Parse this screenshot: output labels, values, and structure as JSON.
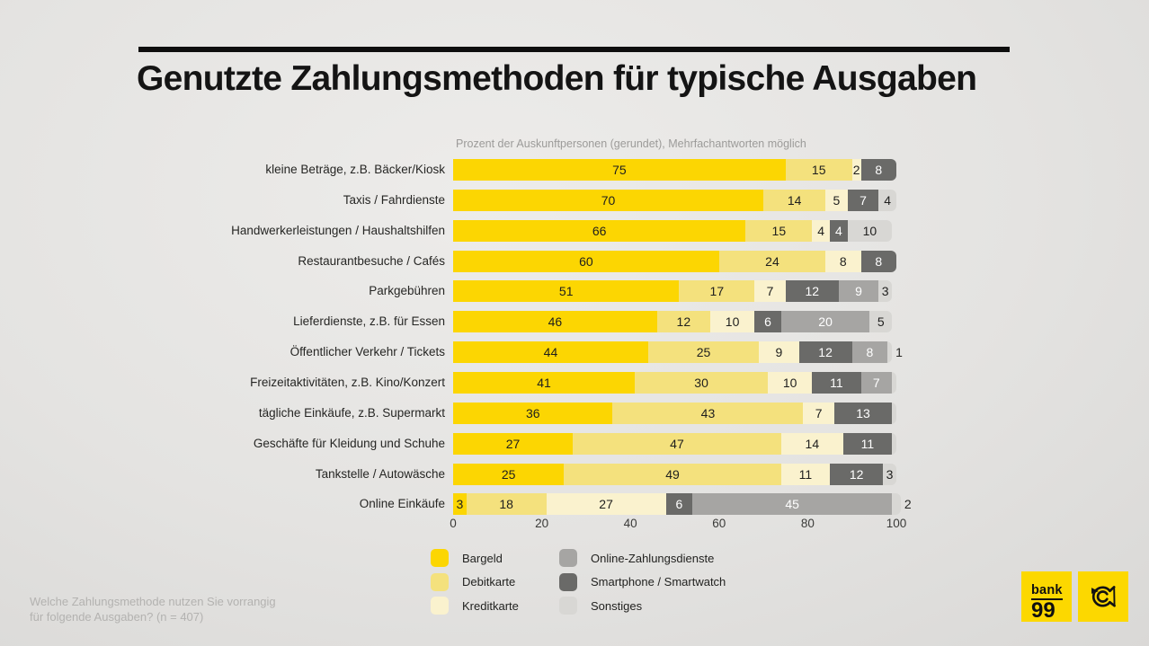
{
  "title": "Genutzte Zahlungsmethoden für typische Ausgaben",
  "subtitle": "Prozent der Auskunftpersonen (gerundet), Mehrfachantworten möglich",
  "footnote": {
    "line1": "Welche Zahlungsmethode nutzen Sie vorrangig",
    "line2": "für folgende Ausgaben? (n = 407)"
  },
  "colors": {
    "bargeld": "#FCD602",
    "debitkarte": "#F4E17D",
    "kreditkarte": "#FAF2CE",
    "online": "#A6A5A3",
    "smartphone": "#6A6A68",
    "sonstiges": "#D8D7D4",
    "rule_black": "#0E0E0E",
    "logo_yellow": "#FCD800",
    "segment_text_dark": "#1F1F1E",
    "segment_text_light": "#FFFFFF"
  },
  "legend": {
    "columns": [
      {
        "items": [
          {
            "key": "bargeld",
            "label": "Bargeld"
          },
          {
            "key": "debitkarte",
            "label": "Debitkarte"
          },
          {
            "key": "kreditkarte",
            "label": "Kreditkarte"
          }
        ]
      },
      {
        "items": [
          {
            "key": "online",
            "label": "Online-Zahlungsdienste"
          },
          {
            "key": "smartphone",
            "label": "Smartphone / Smartwatch"
          },
          {
            "key": "sonstiges",
            "label": "Sonstiges"
          }
        ]
      }
    ]
  },
  "logos": {
    "bank99": {
      "line1": "bank",
      "line2": "99"
    },
    "post": {
      "icon": "post-horn"
    }
  },
  "chart_data": {
    "type": "bar",
    "orientation": "horizontal",
    "stacked": true,
    "unit": "percent",
    "xlim": [
      0,
      100
    ],
    "axis_ticks": [
      0,
      20,
      40,
      60,
      80,
      100
    ],
    "grid": false,
    "legend_position": "bottom",
    "categories": [
      "kleine Beträge, z.B. Bäcker/Kiosk",
      "Taxis / Fahrdienste",
      "Handwerkerleistungen / Haushaltshilfen",
      "Restaurantbesuche / Cafés",
      "Parkgebühren",
      "Lieferdienste, z.B. für Essen",
      "Öffentlicher Verkehr / Tickets",
      "Freizeitaktivitäten, z.B. Kino/Konzert",
      "tägliche Einkäufe, z.B. Supermarkt",
      "Geschäfte für Kleidung und Schuhe",
      "Tankstelle / Autowäsche",
      "Online Einkäufe"
    ],
    "series": [
      {
        "key": "bargeld",
        "name": "Bargeld",
        "values": [
          75,
          70,
          66,
          60,
          51,
          46,
          44,
          41,
          36,
          27,
          25,
          3
        ]
      },
      {
        "key": "debitkarte",
        "name": "Debitkarte",
        "values": [
          15,
          14,
          15,
          24,
          17,
          12,
          25,
          30,
          43,
          47,
          49,
          18
        ]
      },
      {
        "key": "kreditkarte",
        "name": "Kreditkarte",
        "values": [
          2,
          5,
          4,
          8,
          7,
          10,
          9,
          10,
          7,
          14,
          11,
          27
        ]
      },
      {
        "key": "online",
        "name": "Online-Zahlungsdienste",
        "values": [
          0,
          0,
          0,
          0,
          9,
          20,
          8,
          7,
          0,
          0,
          0,
          45
        ]
      },
      {
        "key": "smartphone",
        "name": "Smartphone / Smartwatch",
        "values": [
          8,
          7,
          4,
          8,
          12,
          6,
          12,
          11,
          13,
          11,
          12,
          6
        ]
      },
      {
        "key": "sonstiges",
        "name": "Sonstiges",
        "values": [
          0,
          4,
          10,
          0,
          3,
          5,
          1,
          1,
          1,
          1,
          3,
          2
        ]
      }
    ],
    "rows": [
      {
        "label": "kleine Beträge, z.B. Bäcker/Kiosk",
        "segments": [
          {
            "key": "bargeld",
            "value": 75,
            "label": "in"
          },
          {
            "key": "debitkarte",
            "value": 15,
            "label": "in"
          },
          {
            "key": "kreditkarte",
            "value": 2,
            "label": "in"
          },
          {
            "key": "smartphone",
            "value": 8,
            "label": "in"
          }
        ]
      },
      {
        "label": "Taxis / Fahrdienste",
        "segments": [
          {
            "key": "bargeld",
            "value": 70,
            "label": "in"
          },
          {
            "key": "debitkarte",
            "value": 14,
            "label": "in"
          },
          {
            "key": "kreditkarte",
            "value": 5,
            "label": "in"
          },
          {
            "key": "smartphone",
            "value": 7,
            "label": "in"
          },
          {
            "key": "sonstiges",
            "value": 4,
            "label": "in"
          }
        ]
      },
      {
        "label": "Handwerkerleistungen / Haushaltshilfen",
        "segments": [
          {
            "key": "bargeld",
            "value": 66,
            "label": "in"
          },
          {
            "key": "debitkarte",
            "value": 15,
            "label": "in"
          },
          {
            "key": "kreditkarte",
            "value": 4,
            "label": "in"
          },
          {
            "key": "smartphone",
            "value": 4,
            "label": "in"
          },
          {
            "key": "sonstiges",
            "value": 10,
            "label": "in"
          }
        ]
      },
      {
        "label": "Restaurantbesuche / Cafés",
        "segments": [
          {
            "key": "bargeld",
            "value": 60,
            "label": "in"
          },
          {
            "key": "debitkarte",
            "value": 24,
            "label": "in"
          },
          {
            "key": "kreditkarte",
            "value": 8,
            "label": "in"
          },
          {
            "key": "smartphone",
            "value": 8,
            "label": "in"
          }
        ]
      },
      {
        "label": "Parkgebühren",
        "segments": [
          {
            "key": "bargeld",
            "value": 51,
            "label": "in"
          },
          {
            "key": "debitkarte",
            "value": 17,
            "label": "in"
          },
          {
            "key": "kreditkarte",
            "value": 7,
            "label": "in"
          },
          {
            "key": "smartphone",
            "value": 12,
            "label": "in"
          },
          {
            "key": "online",
            "value": 9,
            "label": "in"
          },
          {
            "key": "sonstiges",
            "value": 3,
            "label": "in"
          }
        ]
      },
      {
        "label": "Lieferdienste, z.B. für Essen",
        "segments": [
          {
            "key": "bargeld",
            "value": 46,
            "label": "in"
          },
          {
            "key": "debitkarte",
            "value": 12,
            "label": "in"
          },
          {
            "key": "kreditkarte",
            "value": 10,
            "label": "in"
          },
          {
            "key": "smartphone",
            "value": 6,
            "label": "in"
          },
          {
            "key": "online",
            "value": 20,
            "label": "in"
          },
          {
            "key": "sonstiges",
            "value": 5,
            "label": "in"
          }
        ]
      },
      {
        "label": "Öffentlicher Verkehr / Tickets",
        "segments": [
          {
            "key": "bargeld",
            "value": 44,
            "label": "in"
          },
          {
            "key": "debitkarte",
            "value": 25,
            "label": "in"
          },
          {
            "key": "kreditkarte",
            "value": 9,
            "label": "in"
          },
          {
            "key": "smartphone",
            "value": 12,
            "label": "in"
          },
          {
            "key": "online",
            "value": 8,
            "label": "in"
          },
          {
            "key": "sonstiges",
            "value": 1,
            "label": "out"
          }
        ]
      },
      {
        "label": "Freizeitaktivitäten, z.B. Kino/Konzert",
        "segments": [
          {
            "key": "bargeld",
            "value": 41,
            "label": "in"
          },
          {
            "key": "debitkarte",
            "value": 30,
            "label": "in"
          },
          {
            "key": "kreditkarte",
            "value": 10,
            "label": "in"
          },
          {
            "key": "smartphone",
            "value": 11,
            "label": "in"
          },
          {
            "key": "online",
            "value": 7,
            "label": "in"
          },
          {
            "key": "sonstiges",
            "value": 1,
            "label": "none"
          }
        ]
      },
      {
        "label": "tägliche Einkäufe, z.B. Supermarkt",
        "segments": [
          {
            "key": "bargeld",
            "value": 36,
            "label": "in"
          },
          {
            "key": "debitkarte",
            "value": 43,
            "label": "in"
          },
          {
            "key": "kreditkarte",
            "value": 7,
            "label": "in"
          },
          {
            "key": "smartphone",
            "value": 13,
            "label": "in"
          },
          {
            "key": "sonstiges",
            "value": 1,
            "label": "none"
          }
        ]
      },
      {
        "label": "Geschäfte für Kleidung und Schuhe",
        "segments": [
          {
            "key": "bargeld",
            "value": 27,
            "label": "in"
          },
          {
            "key": "debitkarte",
            "value": 47,
            "label": "in"
          },
          {
            "key": "kreditkarte",
            "value": 14,
            "label": "in"
          },
          {
            "key": "smartphone",
            "value": 11,
            "label": "in"
          },
          {
            "key": "sonstiges",
            "value": 1,
            "label": "none"
          }
        ]
      },
      {
        "label": "Tankstelle / Autowäsche",
        "segments": [
          {
            "key": "bargeld",
            "value": 25,
            "label": "in"
          },
          {
            "key": "debitkarte",
            "value": 49,
            "label": "in"
          },
          {
            "key": "kreditkarte",
            "value": 11,
            "label": "in"
          },
          {
            "key": "smartphone",
            "value": 12,
            "label": "in"
          },
          {
            "key": "sonstiges",
            "value": 3,
            "label": "in"
          }
        ]
      },
      {
        "label": "Online Einkäufe",
        "segments": [
          {
            "key": "bargeld",
            "value": 3,
            "label": "in"
          },
          {
            "key": "debitkarte",
            "value": 18,
            "label": "in"
          },
          {
            "key": "kreditkarte",
            "value": 27,
            "label": "in"
          },
          {
            "key": "smartphone",
            "value": 6,
            "label": "in"
          },
          {
            "key": "online",
            "value": 45,
            "label": "in"
          },
          {
            "key": "sonstiges",
            "value": 2,
            "label": "out"
          }
        ]
      }
    ]
  }
}
